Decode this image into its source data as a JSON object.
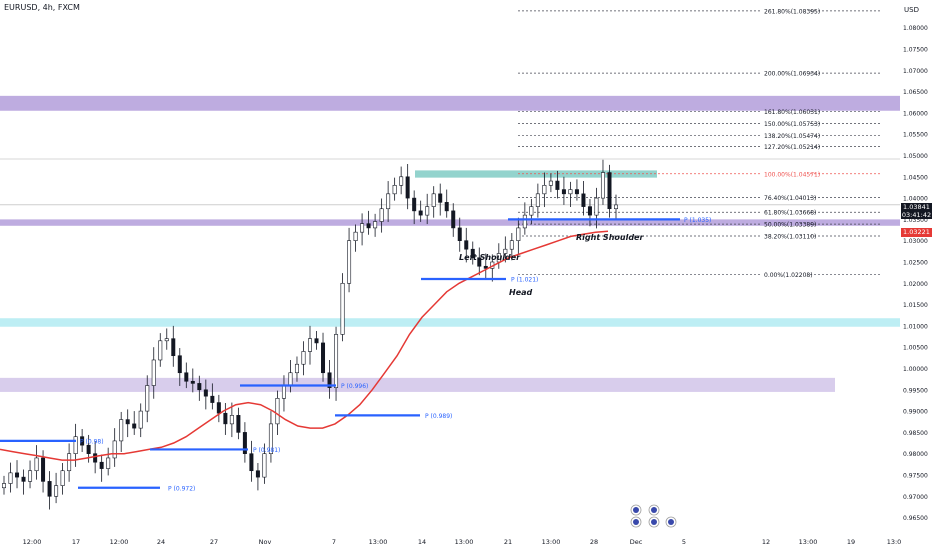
{
  "header": {
    "symbol": "EURUSD, 4h, FXCM"
  },
  "chart_data": {
    "type": "candlestick",
    "currency": "USD",
    "ylim": [
      0.9625,
      1.0865
    ],
    "y_ticks": [
      "1.08000",
      "1.07500",
      "1.07000",
      "1.06500",
      "1.06000",
      "1.05500",
      "1.05000",
      "1.04500",
      "1.04000",
      "1.03500",
      "1.03000",
      "1.02500",
      "1.02000",
      "1.01500",
      "1.01000",
      "1.00500",
      "1.00000",
      "0.99500",
      "0.99000",
      "0.98500",
      "0.98000",
      "0.97500",
      "0.97000",
      "0.96500"
    ],
    "x_ticks": [
      "12:00",
      "17",
      "12:00",
      "24",
      "27",
      "Nov",
      "7",
      "13:00",
      "14",
      "13:00",
      "21",
      "13:00",
      "28",
      "Dec",
      "5",
      "12",
      "13:00",
      "19",
      "13:0"
    ],
    "current_price": "1.03841",
    "countdown": "03:41:42",
    "ma_price": "1.03221",
    "pattern_labels": [
      "Left Shoulder",
      "Head",
      "Right Shoulder"
    ],
    "pivots": [
      "P (0.972)",
      "P (0.981)",
      "P (0.996)",
      "P (0.989)",
      "P (1.021)",
      "P (1.035)",
      "P (0.98)"
    ],
    "fib_levels": [
      {
        "label": "261.80%(1.08395)",
        "value": 1.08395
      },
      {
        "label": "200.00%(1.06934)",
        "value": 1.06934
      },
      {
        "label": "161.80%(1.06031)",
        "value": 1.06031
      },
      {
        "label": "150.00%(1.05753)",
        "value": 1.05753
      },
      {
        "label": "138.20%(1.05474)",
        "value": 1.05474
      },
      {
        "label": "127.20%(1.05214)",
        "value": 1.05214
      },
      {
        "label": "100.00%(1.04571)",
        "value": 1.04571
      },
      {
        "label": "76.40%(1.04013)",
        "value": 1.04013
      },
      {
        "label": "61.80%(1.03668)",
        "value": 1.03668
      },
      {
        "label": "50.00%(1.03389)",
        "value": 1.03389
      },
      {
        "label": "38.20%(1.03110)",
        "value": 1.0311
      },
      {
        "label": "0.00%(1.02208)",
        "value": 1.02208
      }
    ],
    "zones": [
      {
        "from": 1.0605,
        "to": 1.064,
        "color": "#b39ddb"
      },
      {
        "from": 1.0448,
        "to": 1.0465,
        "color": "#80cbc4"
      },
      {
        "from": 1.0335,
        "to": 1.035,
        "color": "#b39ddb"
      },
      {
        "from": 1.0098,
        "to": 1.0118,
        "color": "#b2ebf2"
      },
      {
        "from": 0.9945,
        "to": 0.9978,
        "color": "#d1c4e9"
      }
    ],
    "close_series": [
      0.973,
      0.9755,
      0.9745,
      0.9735,
      0.976,
      0.979,
      0.9735,
      0.97,
      0.9725,
      0.976,
      0.98,
      0.984,
      0.982,
      0.98,
      0.978,
      0.9765,
      0.979,
      0.983,
      0.988,
      0.987,
      0.986,
      0.99,
      0.996,
      1.002,
      1.0065,
      1.007,
      1.003,
      0.999,
      0.997,
      0.9965,
      0.995,
      0.9935,
      0.992,
      0.9895,
      0.987,
      0.989,
      0.985,
      0.98,
      0.976,
      0.9745,
      0.98,
      0.987,
      0.993,
      0.996,
      0.999,
      1.001,
      1.004,
      1.007,
      1.006,
      0.999,
      0.9955,
      1.008,
      1.02,
      1.03,
      1.032,
      1.034,
      1.033,
      1.0345,
      1.0375,
      1.041,
      1.043,
      1.045,
      1.04,
      1.037,
      1.036,
      1.038,
      1.041,
      1.039,
      1.037,
      1.033,
      1.03,
      1.028,
      1.026,
      1.024,
      1.0235,
      1.025,
      1.027,
      1.028,
      1.03,
      1.033,
      1.036,
      1.038,
      1.041,
      1.043,
      1.044,
      1.042,
      1.041,
      1.042,
      1.041,
      1.038,
      1.036,
      1.04,
      1.046,
      1.0375,
      1.0384
    ],
    "ma_series": [
      0.981,
      0.9805,
      0.98,
      0.9795,
      0.979,
      0.9785,
      0.9785,
      0.979,
      0.9795,
      0.98,
      0.98,
      0.9805,
      0.981,
      0.9815,
      0.9825,
      0.984,
      0.986,
      0.988,
      0.99,
      0.9915,
      0.992,
      0.9915,
      0.99,
      0.988,
      0.9865,
      0.986,
      0.986,
      0.987,
      0.989,
      0.9915,
      0.995,
      0.999,
      1.003,
      1.008,
      1.012,
      1.015,
      1.018,
      1.02,
      1.0215,
      1.023,
      1.0245,
      1.026,
      1.027,
      1.028,
      1.029,
      1.03,
      1.031,
      1.0315,
      1.032,
      1.0322
    ]
  }
}
